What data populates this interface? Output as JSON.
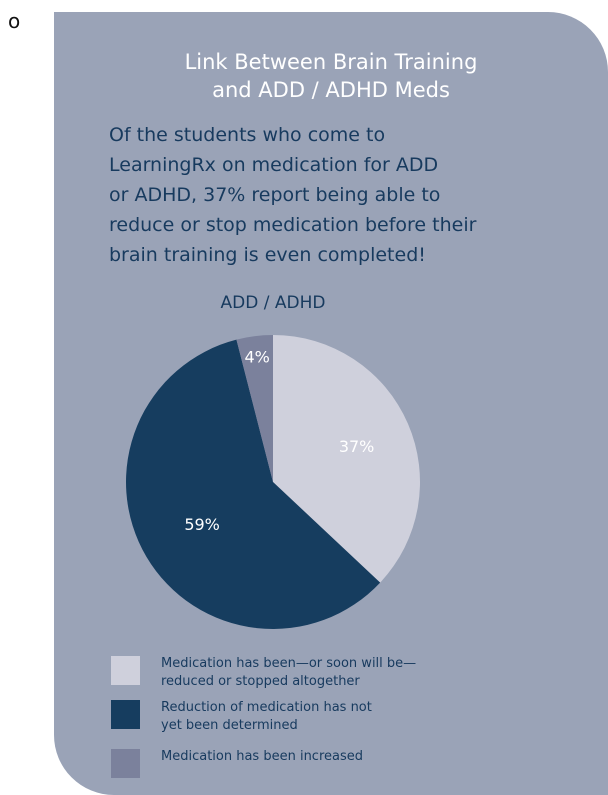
{
  "bullet": "o",
  "title_lines": [
    "Link Between Brain Training",
    "and ADD / ADHD Meds"
  ],
  "lede_lines": [
    "Of the students who come to",
    "LearningRx on medication for ADD",
    "or ADHD, 37% report being able to",
    "reduce or stop medication before their",
    "brain training is even completed!"
  ],
  "colors": {
    "card": "#9aa3b7",
    "title": "#ffffff",
    "text": "#173a5e"
  },
  "chart_data": {
    "type": "pie",
    "title": "ADD / ADHD",
    "slices": [
      {
        "label_lines": [
          "Medication has been—or soon will be—",
          "reduced or stopped altogether"
        ],
        "value": 37,
        "value_label": "37%",
        "color": "#cfd0dc",
        "label_color": "#ffffff"
      },
      {
        "label_lines": [
          "Reduction of medication has not",
          "yet been determined"
        ],
        "value": 59,
        "value_label": "59%",
        "color": "#163d5f",
        "label_color": "#ffffff"
      },
      {
        "label_lines": [
          "Medication has been increased"
        ],
        "value": 4,
        "value_label": "4%",
        "color": "#7b819c",
        "label_color": "#ffffff"
      }
    ],
    "start_angle": "12 o'clock",
    "direction": "clockwise",
    "legend_position": "bottom-left"
  }
}
